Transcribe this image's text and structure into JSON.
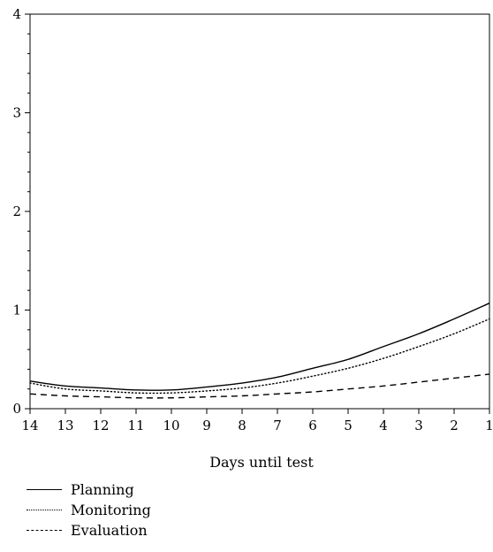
{
  "chart_data": {
    "type": "line",
    "title": "",
    "xlabel": "Days until test",
    "ylabel": "",
    "x": [
      14,
      13,
      12,
      11,
      10,
      9,
      8,
      7,
      6,
      5,
      4,
      3,
      2,
      1
    ],
    "x_tick_labels": [
      "14",
      "13",
      "12",
      "11",
      "10",
      "9",
      "8",
      "7",
      "6",
      "5",
      "4",
      "3",
      "2",
      "1"
    ],
    "xlim": [
      14,
      1
    ],
    "ylim": [
      0,
      4
    ],
    "y_ticks": [
      0,
      1,
      2,
      3,
      4
    ],
    "y_tick_labels": [
      "0",
      "1",
      "2",
      "3",
      "4"
    ],
    "grid": false,
    "legend_placement": "bottom-left",
    "series": [
      {
        "name": "Planning",
        "style": "solid",
        "color": "#000000",
        "values": [
          0.28,
          0.23,
          0.21,
          0.19,
          0.19,
          0.22,
          0.26,
          0.32,
          0.41,
          0.5,
          0.63,
          0.76,
          0.91,
          1.07
        ]
      },
      {
        "name": "Monitoring",
        "style": "dotted",
        "color": "#000000",
        "values": [
          0.26,
          0.2,
          0.18,
          0.16,
          0.16,
          0.18,
          0.21,
          0.26,
          0.33,
          0.41,
          0.51,
          0.63,
          0.76,
          0.91
        ]
      },
      {
        "name": "Evaluation",
        "style": "dashed",
        "color": "#000000",
        "values": [
          0.15,
          0.13,
          0.12,
          0.11,
          0.11,
          0.12,
          0.13,
          0.15,
          0.17,
          0.2,
          0.23,
          0.27,
          0.31,
          0.35
        ]
      }
    ]
  }
}
